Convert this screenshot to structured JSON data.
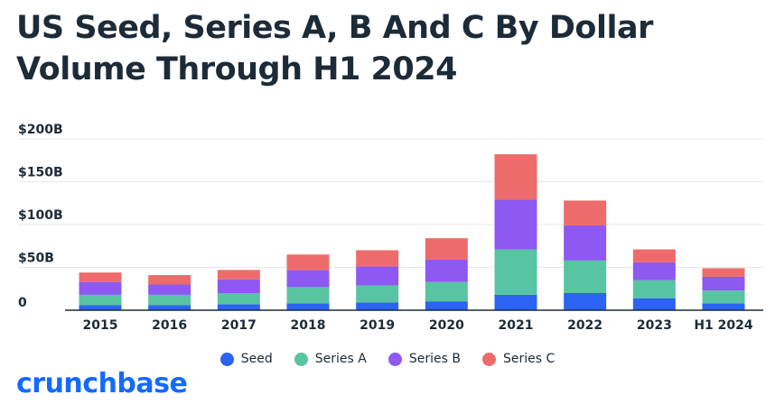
{
  "brand": "crunchbase",
  "chart_data": {
    "type": "bar",
    "stacked": true,
    "title": "US Seed, Series A, B And C By Dollar Volume Through H1 2024",
    "xlabel": "",
    "ylabel": "",
    "ylim": [
      0,
      200
    ],
    "yticks": [
      0,
      50,
      100,
      150,
      200
    ],
    "ytick_labels": [
      "0",
      "$50B",
      "$100B",
      "$150B",
      "$200B"
    ],
    "grid": true,
    "legend_position": "bottom",
    "categories": [
      "2015",
      "2016",
      "2017",
      "2018",
      "2019",
      "2020",
      "2021",
      "2022",
      "2023",
      "H1 2024"
    ],
    "series": [
      {
        "name": "Seed",
        "color": "#2b63f2",
        "values": [
          6,
          6,
          7,
          8,
          9,
          10,
          18,
          20,
          14,
          8
        ]
      },
      {
        "name": "Series A",
        "color": "#57c4a2",
        "values": [
          12,
          12,
          13,
          19,
          20,
          23,
          53,
          38,
          21,
          15
        ]
      },
      {
        "name": "Series B",
        "color": "#8e58f2",
        "values": [
          15,
          12,
          16,
          20,
          22,
          26,
          58,
          41,
          21,
          16
        ]
      },
      {
        "name": "Series C",
        "color": "#ee6b6b",
        "values": [
          11,
          11,
          11,
          18,
          19,
          25,
          53,
          29,
          15,
          10
        ]
      }
    ]
  }
}
